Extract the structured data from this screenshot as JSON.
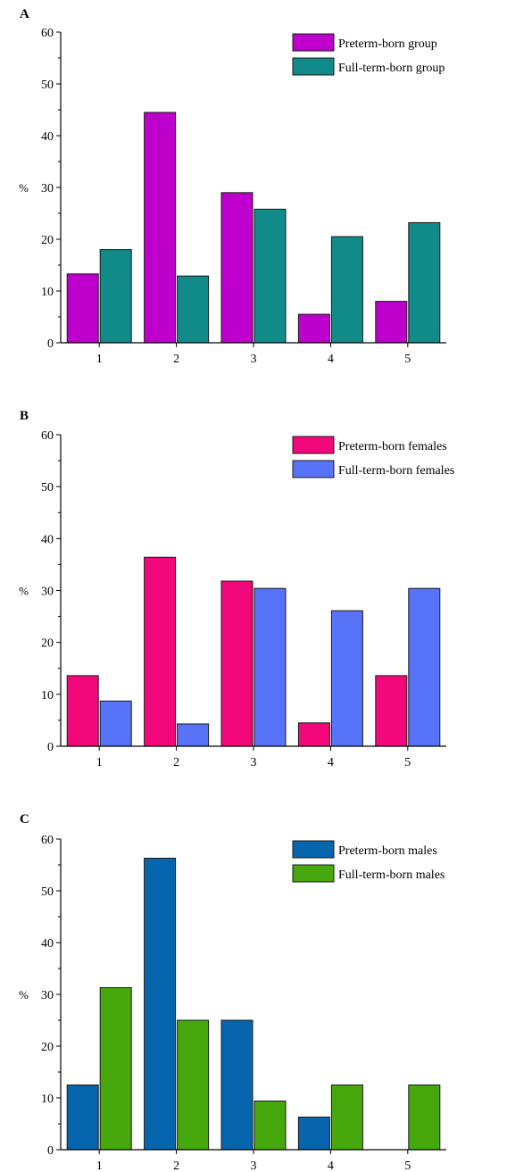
{
  "chart_data": [
    {
      "type": "bar",
      "panel": "A",
      "categories": [
        "1",
        "2",
        "3",
        "4",
        "5"
      ],
      "ylabel": "%",
      "ylim": [
        0,
        60
      ],
      "yticks": [
        0,
        10,
        20,
        30,
        40,
        50,
        60
      ],
      "legend_position": "top-right",
      "series": [
        {
          "name": "Preterm-born group",
          "color": "#bf00cc",
          "values": [
            13.3,
            44.5,
            29.0,
            5.5,
            8.0
          ]
        },
        {
          "name": "Full-term-born group",
          "color": "#118a8a",
          "values": [
            18.0,
            12.9,
            25.8,
            20.5,
            23.2
          ]
        }
      ]
    },
    {
      "type": "bar",
      "panel": "B",
      "categories": [
        "1",
        "2",
        "3",
        "4",
        "5"
      ],
      "ylabel": "%",
      "ylim": [
        0,
        60
      ],
      "yticks": [
        0,
        10,
        20,
        30,
        40,
        50,
        60
      ],
      "legend_position": "top-right",
      "series": [
        {
          "name": "Preterm-born females",
          "color": "#f2087a",
          "values": [
            13.6,
            36.4,
            31.8,
            4.5,
            13.6
          ]
        },
        {
          "name": "Full-term-born females",
          "color": "#5773f7",
          "values": [
            8.7,
            4.3,
            30.4,
            26.1,
            30.4
          ]
        }
      ]
    },
    {
      "type": "bar",
      "panel": "C",
      "categories": [
        "1",
        "2",
        "3",
        "4",
        "5"
      ],
      "ylabel": "%",
      "ylim": [
        0,
        60
      ],
      "yticks": [
        0,
        10,
        20,
        30,
        40,
        50,
        60
      ],
      "legend_position": "top-right",
      "series": [
        {
          "name": "Preterm-born males",
          "color": "#0765ae",
          "values": [
            12.5,
            56.3,
            25.0,
            6.3,
            0
          ]
        },
        {
          "name": "Full-term-born males",
          "color": "#46a80c",
          "values": [
            31.3,
            25.0,
            9.4,
            12.5,
            12.5
          ]
        }
      ]
    }
  ]
}
